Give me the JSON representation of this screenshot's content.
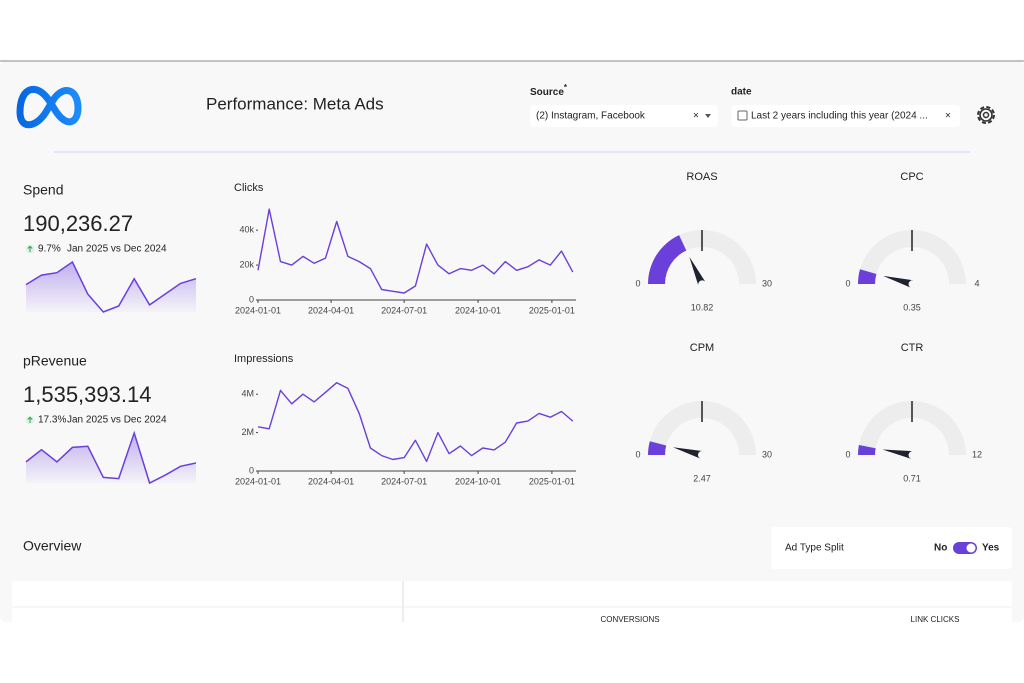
{
  "header": {
    "title": "Performance: Meta Ads"
  },
  "filters": [
    {
      "label": "Source",
      "required_mark": "*",
      "value": "(2) Instagram, Facebook",
      "clear": "×"
    },
    {
      "label": "date",
      "value": "Last 2 years including this year (2024 ...",
      "clear": "×"
    }
  ],
  "kpis": [
    {
      "label": "Spend",
      "value": "190,236.27",
      "change": "9.7%",
      "comparison": "Jan 2025 vs Dec 2024",
      "sparkline": [
        35,
        43,
        45,
        54,
        27,
        12,
        17,
        40,
        18,
        27,
        36,
        40
      ]
    },
    {
      "label": "pRevenue",
      "value": "1,535,393.14",
      "change": "17.3%",
      "comparison": "Jan 2025 vs Dec 2024",
      "sparkline": [
        20,
        31,
        20,
        33,
        34,
        6,
        5,
        46,
        1,
        8,
        16,
        19
      ]
    }
  ],
  "chart_data": [
    {
      "type": "line",
      "title": "Clicks",
      "color": "#6b3fd9",
      "x": [
        "2024-01-01",
        "2024-01-15",
        "2024-01-29",
        "2024-02-12",
        "2024-02-26",
        "2024-03-11",
        "2024-03-25",
        "2024-04-08",
        "2024-04-22",
        "2024-05-06",
        "2024-05-20",
        "2024-06-03",
        "2024-06-17",
        "2024-07-01",
        "2024-07-15",
        "2024-07-29",
        "2024-08-12",
        "2024-08-26",
        "2024-09-09",
        "2024-09-23",
        "2024-10-07",
        "2024-10-21",
        "2024-11-04",
        "2024-11-18",
        "2024-12-02",
        "2024-12-16",
        "2024-12-30",
        "2025-01-13",
        "2025-01-27"
      ],
      "values": [
        17000,
        52000,
        22000,
        20000,
        25000,
        21000,
        24000,
        45000,
        25000,
        22000,
        18000,
        6000,
        5000,
        4000,
        8000,
        32000,
        20000,
        15000,
        18000,
        17000,
        20000,
        15000,
        22000,
        17000,
        19000,
        23000,
        20000,
        28000,
        16000
      ],
      "xlim": [
        "2024-01-01",
        "2025-01-31"
      ],
      "xticks": [
        "2024-01-01",
        "2024-04-01",
        "2024-07-01",
        "2024-10-01",
        "2025-01-01"
      ],
      "ylim": [
        0,
        55000
      ],
      "yticks": [
        0,
        {
          "value": 20000,
          "label": "20k"
        },
        {
          "value": 40000,
          "label": "40k"
        }
      ]
    },
    {
      "type": "line",
      "title": "Impressions",
      "color": "#6b3fd9",
      "x": [
        "2024-01-01",
        "2024-01-15",
        "2024-01-29",
        "2024-02-12",
        "2024-02-26",
        "2024-03-11",
        "2024-03-25",
        "2024-04-08",
        "2024-04-22",
        "2024-05-06",
        "2024-05-20",
        "2024-06-03",
        "2024-06-17",
        "2024-07-01",
        "2024-07-15",
        "2024-07-29",
        "2024-08-12",
        "2024-08-26",
        "2024-09-09",
        "2024-09-23",
        "2024-10-07",
        "2024-10-21",
        "2024-11-04",
        "2024-11-18",
        "2024-12-02",
        "2024-12-16",
        "2024-12-30",
        "2025-01-13",
        "2025-01-27"
      ],
      "values": [
        2300000,
        2200000,
        4200000,
        3500000,
        4000000,
        3600000,
        4100000,
        4600000,
        4300000,
        3000000,
        1200000,
        800000,
        600000,
        700000,
        1600000,
        500000,
        2000000,
        900000,
        1300000,
        800000,
        1200000,
        1100000,
        1500000,
        2500000,
        2600000,
        3000000,
        2800000,
        3100000,
        2600000
      ],
      "xlim": [
        "2024-01-01",
        "2025-01-31"
      ],
      "xticks": [
        "2024-01-01",
        "2024-04-01",
        "2024-07-01",
        "2024-10-01",
        "2025-01-01"
      ],
      "ylim": [
        0,
        5000000
      ],
      "yticks": [
        0,
        {
          "value": 2000000,
          "label": "2M"
        },
        {
          "value": 4000000,
          "label": "4M"
        }
      ]
    },
    {
      "type": "gauge",
      "title": "ROAS",
      "value": 10.82,
      "min": 0,
      "max": 30,
      "color": "#6b3fd9"
    },
    {
      "type": "gauge",
      "title": "CPC",
      "value": 0.35,
      "min": 0,
      "max": 4,
      "color": "#6b3fd9"
    },
    {
      "type": "gauge",
      "title": "CPM",
      "value": 2.47,
      "min": 0,
      "max": 30,
      "color": "#6b3fd9"
    },
    {
      "type": "gauge",
      "title": "CTR",
      "value": 0.71,
      "min": 0,
      "max": 12,
      "color": "#6b3fd9"
    }
  ],
  "overview": {
    "title": "Overview",
    "toggle": {
      "label": "Ad Type Split",
      "off": "No",
      "on": "Yes",
      "checked": true
    }
  },
  "table": {
    "columns": [
      "CONVERSIONS",
      "LINK CLICKS"
    ]
  }
}
